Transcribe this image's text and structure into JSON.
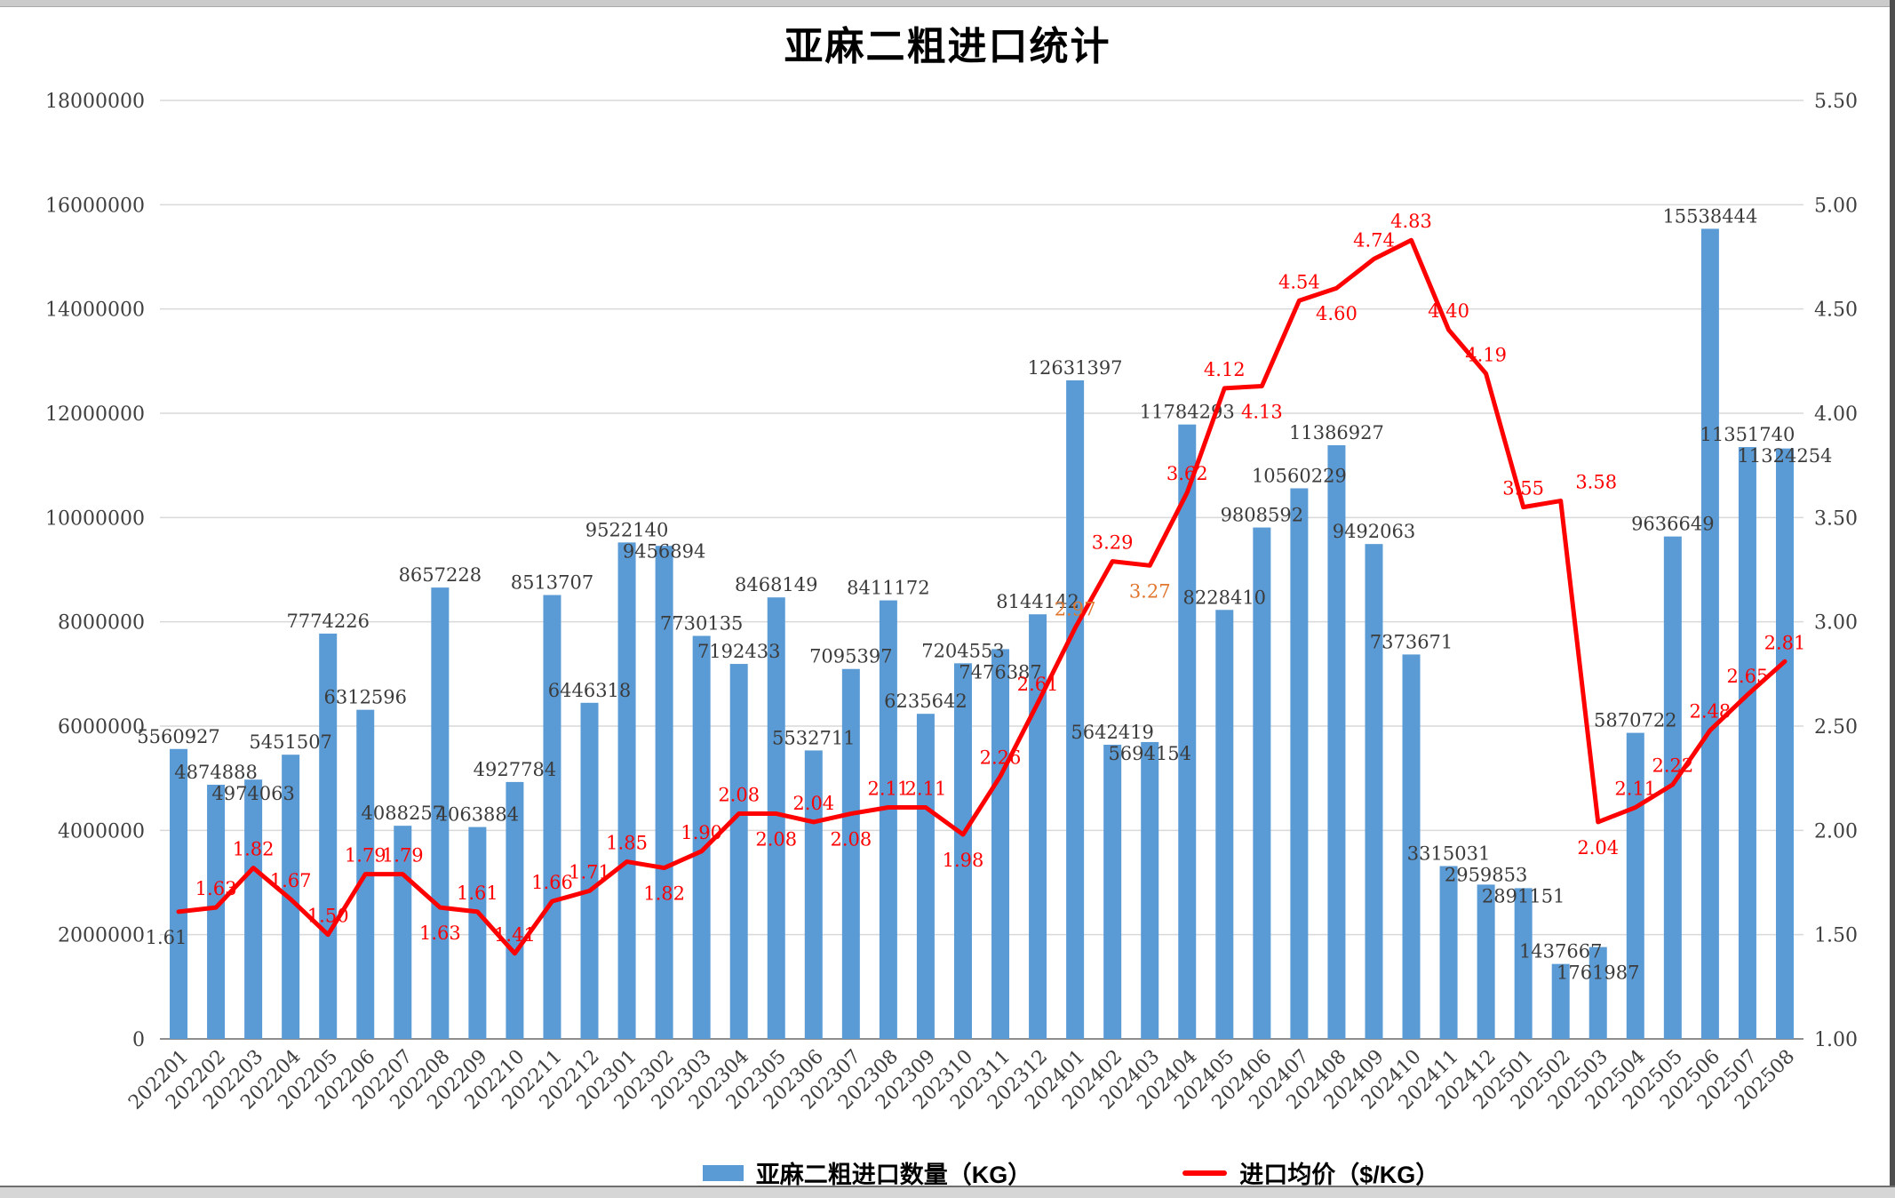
{
  "window": {
    "background": "#ffffff",
    "top_strip_color": "#cbcbcb",
    "bottom_strip_color": "#d6d6d6",
    "right_strip_color": "#4e4e4e"
  },
  "chart_data": {
    "type": "bar+line",
    "title": "亚麻二粗进口统计",
    "categories": [
      "202201",
      "202202",
      "202203",
      "202204",
      "202205",
      "202206",
      "202207",
      "202208",
      "202209",
      "202210",
      "202211",
      "202212",
      "202301",
      "202302",
      "202303",
      "202304",
      "202305",
      "202306",
      "202307",
      "202308",
      "202309",
      "202310",
      "202311",
      "202312",
      "202401",
      "202402",
      "202403",
      "202404",
      "202405",
      "202406",
      "202407",
      "202408",
      "202409",
      "202410",
      "202411",
      "202412",
      "202501",
      "202502",
      "202503",
      "202504",
      "202505",
      "202506",
      "202507",
      "202508"
    ],
    "series": [
      {
        "name": "亚麻二粗进口数量（KG）",
        "type": "bar",
        "color": "#5b9bd5",
        "axis": "left",
        "values": [
          5560927,
          4874888,
          4974063,
          5451507,
          7774226,
          6312596,
          4088257,
          8657228,
          4063884,
          4927784,
          8513707,
          6446318,
          9522140,
          9456894,
          7730135,
          7192433,
          8468149,
          5532711,
          7095397,
          8411172,
          6235642,
          7204553,
          7476387,
          8144142,
          12631397,
          5642419,
          5694154,
          11784293,
          8228410,
          9808592,
          10560229,
          11386927,
          9492063,
          7373671,
          3315031,
          2959853,
          2891151,
          1437667,
          1761987,
          5870722,
          9636649,
          15538444,
          11351740,
          11324254
        ]
      },
      {
        "name": "进口均价（$/KG）",
        "type": "line",
        "color": "#fe0000",
        "axis": "right",
        "labels": [
          "1.61",
          "1.63",
          "1.82",
          "1.67",
          "1.50",
          "1.79",
          "1.79",
          "1.63",
          "1.61",
          "1.41",
          "1.66",
          "1.71",
          "1.85",
          "1.82",
          "1.90",
          "2.08",
          "2.08",
          "2.04",
          "2.08",
          "2.11",
          "2.11",
          "1.98",
          "2.26",
          "2.61",
          "2.97",
          "3.29",
          "3.27",
          "3.62",
          "4.12",
          "4.13",
          "4.54",
          "4.60",
          "4.74",
          "4.83",
          "4.40",
          "4.19",
          "3.55",
          "3.58",
          "2.04",
          "2.11",
          "2.22",
          "2.48",
          "2.65",
          "2.81"
        ],
        "label_below_indices": [
          0,
          7,
          13,
          16,
          18,
          21,
          26,
          29,
          31,
          38
        ],
        "label_color_overrides": {
          "0": "#3a3a3a",
          "24": "#e1762f",
          "26": "#e1762f"
        },
        "label_dx_overrides": {
          "0": -14,
          "37": 40
        }
      }
    ],
    "left_axis": {
      "min": 0,
      "max": 18000000,
      "step": 2000000,
      "ticks": [
        "0",
        "2000000",
        "4000000",
        "6000000",
        "8000000",
        "10000000",
        "12000000",
        "14000000",
        "16000000",
        "18000000"
      ]
    },
    "right_axis": {
      "min": 1.0,
      "max": 5.5,
      "step": 0.5,
      "ticks": [
        "1.00",
        "1.50",
        "2.00",
        "2.50",
        "3.00",
        "3.50",
        "4.00",
        "4.50",
        "5.00",
        "5.50"
      ]
    },
    "grid": true,
    "legend_position": "bottom",
    "colors": {
      "gridline": "#d9d9d9",
      "zero_axis": "#8e8e8e",
      "value_label": "#3b3b3b",
      "axis_label": "#404040",
      "price_label": "#fe0000"
    }
  }
}
